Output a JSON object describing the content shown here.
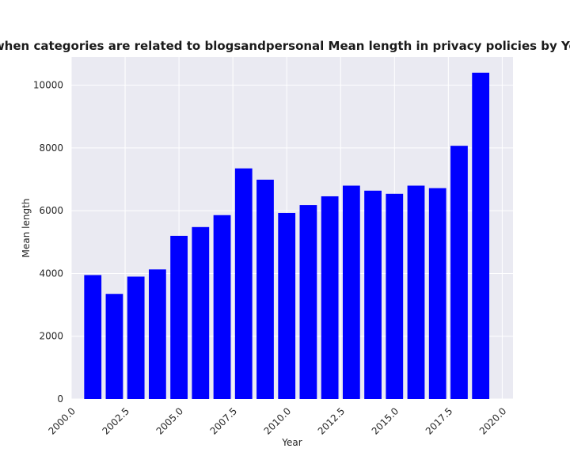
{
  "chart_data": {
    "type": "bar",
    "title": "when categories are related to blogsandpersonal Mean length in privacy policies by Year",
    "xlabel": "Year",
    "ylabel": "Mean length",
    "x": [
      2001,
      2002,
      2003,
      2004,
      2005,
      2006,
      2007,
      2008,
      2009,
      2010,
      2011,
      2012,
      2013,
      2014,
      2015,
      2016,
      2017,
      2018,
      2019
    ],
    "values": [
      3950,
      3350,
      3900,
      4130,
      5200,
      5480,
      5860,
      7350,
      6990,
      5930,
      6180,
      6460,
      6800,
      6640,
      6540,
      6800,
      6720,
      8070,
      10400
    ],
    "bar_color": "#0000ff",
    "xlim": [
      2000.0,
      2020.5
    ],
    "ylim": [
      0,
      10900
    ],
    "xticks": [
      "2000.0",
      "2002.5",
      "2005.0",
      "2007.5",
      "2010.0",
      "2012.5",
      "2015.0",
      "2017.5",
      "2020.0"
    ],
    "yticks": [
      "0",
      "2000",
      "4000",
      "6000",
      "8000",
      "10000"
    ],
    "grid": true,
    "background": "#eaeaf2",
    "grid_color": "#ffffff"
  }
}
